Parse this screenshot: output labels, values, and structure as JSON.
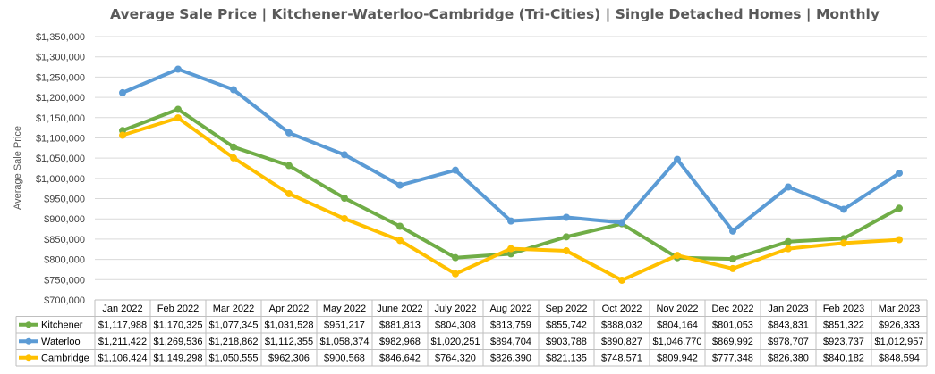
{
  "chart_data": {
    "type": "line",
    "title": "Average Sale Price | Kitchener-Waterloo-Cambridge (Tri-Cities) | Single Detached Homes | Monthly",
    "ylabel": "Average Sale Price",
    "xlabel": "",
    "ylim": [
      700000,
      1350000
    ],
    "ytick_values": [
      700000,
      750000,
      800000,
      850000,
      900000,
      950000,
      1000000,
      1050000,
      1100000,
      1150000,
      1200000,
      1250000,
      1300000,
      1350000
    ],
    "ytick_labels": [
      "$700,000",
      "$750,000",
      "$800,000",
      "$850,000",
      "$900,000",
      "$950,000",
      "$1,000,000",
      "$1,050,000",
      "$1,100,000",
      "$1,150,000",
      "$1,200,000",
      "$1,250,000",
      "$1,300,000",
      "$1,350,000"
    ],
    "grid": true,
    "legend": "data-table-bottom",
    "categories": [
      "Jan 2022",
      "Feb 2022",
      "Mar 2022",
      "Apr 2022",
      "May 2022",
      "June 2022",
      "July 2022",
      "Aug 2022",
      "Sep 2022",
      "Oct 2022",
      "Nov 2022",
      "Dec 2022",
      "Jan 2023",
      "Feb 2023",
      "Mar 2023"
    ],
    "series": [
      {
        "name": "Kitchener",
        "color": "#70ad47",
        "values": [
          1117988,
          1170325,
          1077345,
          1031528,
          951217,
          881813,
          804308,
          813759,
          855742,
          888032,
          804164,
          801053,
          843831,
          851322,
          926333
        ],
        "labels": [
          "$1,117,988",
          "$1,170,325",
          "$1,077,345",
          "$1,031,528",
          "$951,217",
          "$881,813",
          "$804,308",
          "$813,759",
          "$855,742",
          "$888,032",
          "$804,164",
          "$801,053",
          "$843,831",
          "$851,322",
          "$926,333"
        ]
      },
      {
        "name": "Waterloo",
        "color": "#5b9bd5",
        "values": [
          1211422,
          1269536,
          1218862,
          1112355,
          1058374,
          982968,
          1020251,
          894704,
          903788,
          890827,
          1046770,
          869992,
          978707,
          923737,
          1012957
        ],
        "labels": [
          "$1,211,422",
          "$1,269,536",
          "$1,218,862",
          "$1,112,355",
          "$1,058,374",
          "$982,968",
          "$1,020,251",
          "$894,704",
          "$903,788",
          "$890,827",
          "$1,046,770",
          "$869,992",
          "$978,707",
          "$923,737",
          "$1,012,957"
        ]
      },
      {
        "name": "Cambridge",
        "color": "#ffc000",
        "values": [
          1106424,
          1149298,
          1050555,
          962306,
          900568,
          846642,
          764320,
          826390,
          821135,
          748571,
          809942,
          777348,
          826380,
          840182,
          848594
        ],
        "labels": [
          "$1,106,424",
          "$1,149,298",
          "$1,050,555",
          "$962,306",
          "$900,568",
          "$846,642",
          "$764,320",
          "$826,390",
          "$821,135",
          "$748,571",
          "$809,942",
          "$777,348",
          "$826,380",
          "$840,182",
          "$848,594"
        ]
      }
    ]
  }
}
